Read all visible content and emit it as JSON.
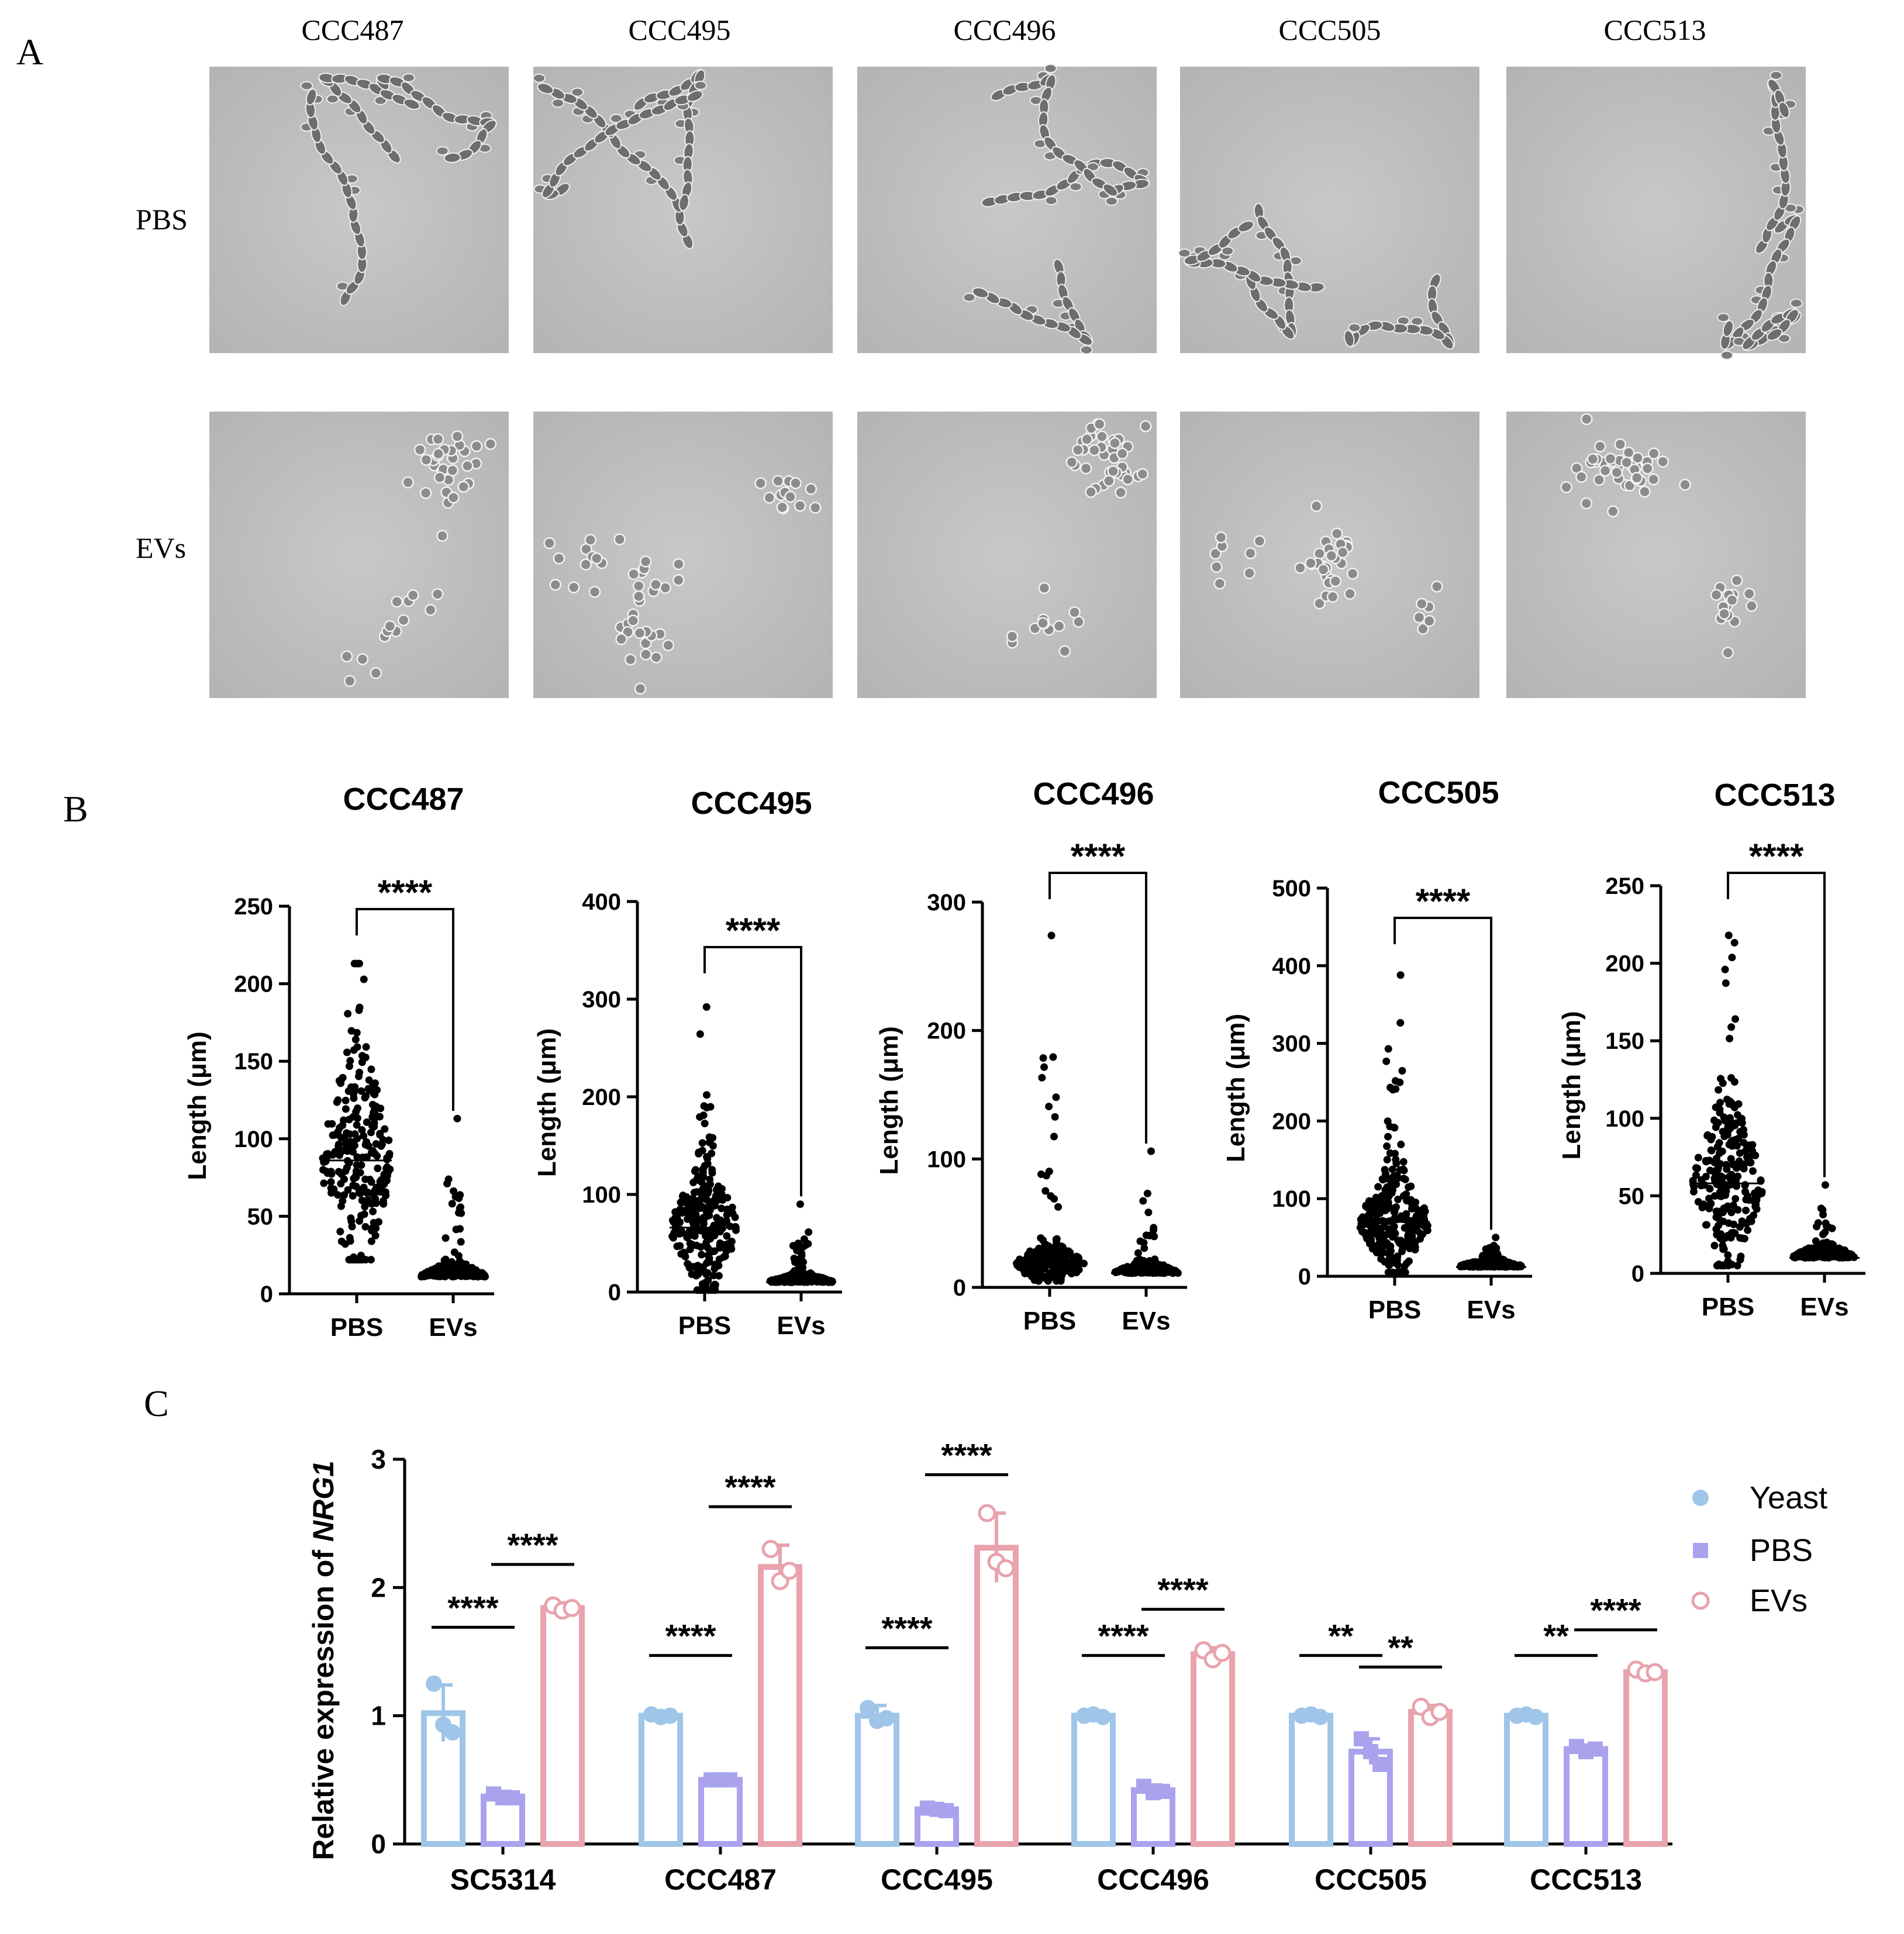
{
  "panel_letters": [
    "A",
    "B",
    "C"
  ],
  "panel_a": {
    "strains": [
      "CCC487",
      "CCC495",
      "CCC496",
      "CCC505",
      "CCC513"
    ],
    "rows": [
      "PBS",
      "EVs"
    ],
    "images": [
      {
        "morphology": "hyphae",
        "treatment": "PBS"
      },
      {
        "morphology": "yeast",
        "treatment": "EVs"
      }
    ]
  },
  "chart_data": [
    {
      "type": "scatter",
      "title": "CCC487",
      "categories": [
        "PBS",
        "EVs"
      ],
      "ylabel": "Length (μm)",
      "ylim": [
        0,
        250
      ],
      "yticks": [
        0,
        50,
        100,
        150,
        200,
        250
      ],
      "significance": "****",
      "series": [
        {
          "name": "PBS",
          "median": 86,
          "min": 22,
          "max": 213,
          "n": 240
        },
        {
          "name": "EVs",
          "median": 11,
          "min": 3,
          "max": 113,
          "n": 240
        }
      ]
    },
    {
      "type": "scatter",
      "title": "CCC495",
      "categories": [
        "PBS",
        "EVs"
      ],
      "ylabel": "Length (μm)",
      "ylim": [
        0,
        400
      ],
      "yticks": [
        0,
        100,
        200,
        300,
        400
      ],
      "significance": "****",
      "series": [
        {
          "name": "PBS",
          "median": 66,
          "min": 2,
          "max": 292,
          "n": 240
        },
        {
          "name": "EVs",
          "median": 10,
          "min": 1,
          "max": 90,
          "n": 240
        }
      ]
    },
    {
      "type": "scatter",
      "title": "CCC496",
      "categories": [
        "PBS",
        "EVs"
      ],
      "ylabel": "Length (μm)",
      "ylim": [
        0,
        300
      ],
      "yticks": [
        0,
        100,
        200,
        300
      ],
      "significance": "****",
      "series": [
        {
          "name": "PBS",
          "median": 18,
          "min": 5,
          "max": 274,
          "n": 240
        },
        {
          "name": "EVs",
          "median": 11,
          "min": 2,
          "max": 106,
          "n": 240
        }
      ]
    },
    {
      "type": "scatter",
      "title": "CCC505",
      "categories": [
        "PBS",
        "EVs"
      ],
      "ylabel": "Length (μm)",
      "ylim": [
        0,
        500
      ],
      "yticks": [
        0,
        100,
        200,
        300,
        400,
        500
      ],
      "significance": "****",
      "series": [
        {
          "name": "PBS",
          "median": 70,
          "min": 5,
          "max": 388,
          "n": 240
        },
        {
          "name": "EVs",
          "median": 12,
          "min": 2,
          "max": 50,
          "n": 240
        }
      ]
    },
    {
      "type": "scatter",
      "title": "CCC513",
      "categories": [
        "PBS",
        "EVs"
      ],
      "ylabel": "Length (μm)",
      "ylim": [
        0,
        250
      ],
      "yticks": [
        0,
        50,
        100,
        150,
        200,
        250
      ],
      "significance": "****",
      "series": [
        {
          "name": "PBS",
          "median": 58,
          "min": 5,
          "max": 218,
          "n": 240
        },
        {
          "name": "EVs",
          "median": 10,
          "min": 2,
          "max": 57,
          "n": 240
        }
      ]
    },
    {
      "type": "bar",
      "categories": [
        "SC5314",
        "CCC487",
        "CCC495",
        "CCC496",
        "CCC505",
        "CCC513"
      ],
      "ylabel_prefix": "Relative expression of ",
      "ylabel_gene": "NRG1",
      "ylim": [
        0,
        3
      ],
      "yticks": [
        0,
        1,
        2,
        3
      ],
      "legend_position": "top-right",
      "series": [
        {
          "name": "Yeast",
          "color": "#9fc5e8",
          "marker": "circle",
          "values": [
            1.02,
            1.0,
            1.0,
            1.0,
            1.0,
            1.0
          ],
          "err": [
            0.22,
            0.02,
            0.08,
            0.02,
            0.02,
            0.02
          ],
          "points": [
            [
              1.25,
              0.93,
              0.87
            ],
            [
              1.01,
              0.99,
              1.0
            ],
            [
              1.06,
              0.96,
              0.98
            ],
            [
              1.0,
              1.01,
              0.99
            ],
            [
              1.0,
              1.01,
              0.99
            ],
            [
              1.0,
              1.01,
              0.99
            ]
          ]
        },
        {
          "name": "PBS",
          "color": "#a9a3ee",
          "marker": "square",
          "values": [
            0.37,
            0.5,
            0.27,
            0.42,
            0.72,
            0.74
          ],
          "err": [
            0.04,
            0.01,
            0.02,
            0.04,
            0.1,
            0.03
          ],
          "points": [
            [
              0.39,
              0.36,
              0.36
            ],
            [
              0.5,
              0.5,
              0.5
            ],
            [
              0.28,
              0.27,
              0.26
            ],
            [
              0.45,
              0.4,
              0.41
            ],
            [
              0.82,
              0.72,
              0.62
            ],
            [
              0.76,
              0.72,
              0.74
            ]
          ]
        },
        {
          "name": "EVs",
          "color": "#e8a3ad",
          "marker": "circle-open",
          "values": [
            1.84,
            2.16,
            2.31,
            1.48,
            1.03,
            1.34
          ],
          "err": [
            0.04,
            0.17,
            0.27,
            0.05,
            0.05,
            0.03
          ],
          "points": [
            [
              1.86,
              1.82,
              1.84
            ],
            [
              2.3,
              2.05,
              2.13
            ],
            [
              2.58,
              2.2,
              2.15
            ],
            [
              1.51,
              1.44,
              1.49
            ],
            [
              1.07,
              0.99,
              1.03
            ],
            [
              1.36,
              1.33,
              1.34
            ]
          ]
        }
      ],
      "comparisons": [
        [
          "****",
          "****"
        ],
        [
          "****",
          "****"
        ],
        [
          "****",
          "****"
        ],
        [
          "****",
          "****"
        ],
        [
          "**",
          "**"
        ],
        [
          "**",
          "****"
        ]
      ]
    }
  ]
}
